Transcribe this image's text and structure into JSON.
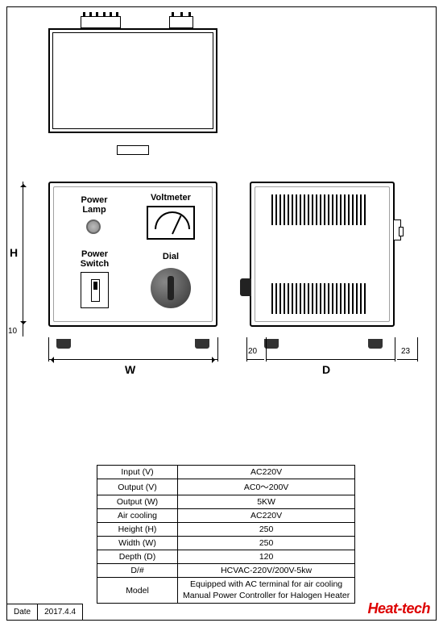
{
  "labels": {
    "power_lamp": "Power Lamp",
    "voltmeter": "Voltmeter",
    "power_switch": "Power Switch",
    "dial": "Dial"
  },
  "dimensions": {
    "H": "H",
    "W": "W",
    "D": "D",
    "foot_h": "10",
    "left_gap": "20",
    "right_gap": "23"
  },
  "spec": {
    "rows": [
      {
        "k": "Input (V)",
        "v": "AC220V"
      },
      {
        "k": "Output (V)",
        "v": "AC0～200V"
      },
      {
        "k": "Output (W)",
        "v": "5KW"
      },
      {
        "k": "Air cooling",
        "v": "AC220V"
      },
      {
        "k": "Height (H)",
        "v": "250"
      },
      {
        "k": "Width  (W)",
        "v": "250"
      },
      {
        "k": "Depth (D)",
        "v": "120"
      },
      {
        "k": "D/#",
        "v": "HCVAC-220V/200V-5kw"
      }
    ],
    "model_k": "Model",
    "model_v": "Equipped with AC terminal for air cooling\nManual Power Controller for Halogen Heater"
  },
  "date": {
    "label": "Date",
    "value": "2017.4.4"
  },
  "brand": "Heat-tech",
  "style": {
    "brand_color": "#d00",
    "line_color": "#000000",
    "vent_count": 24
  }
}
